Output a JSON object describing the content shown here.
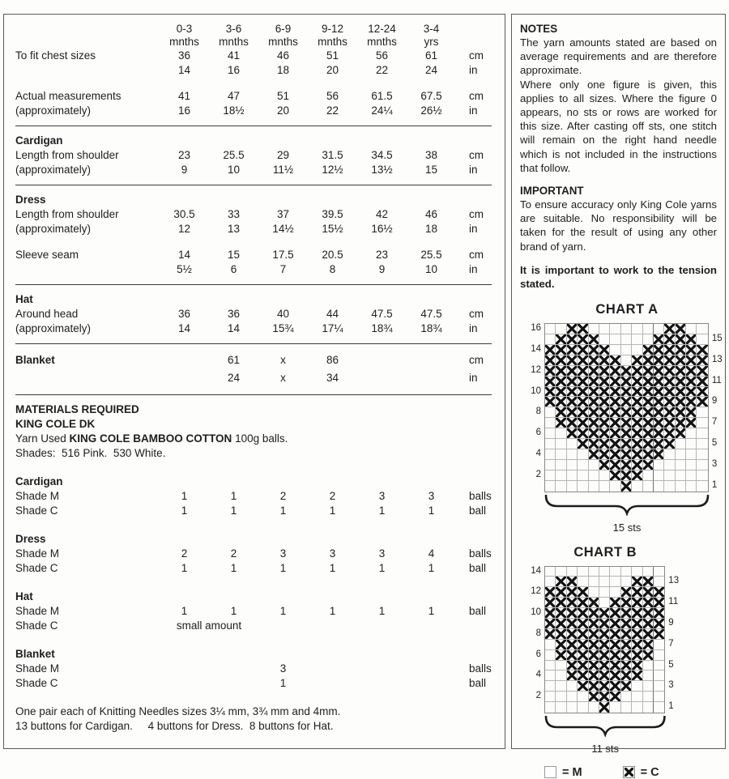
{
  "size_table": {
    "header_cols": [
      [
        "0-3",
        "mnths"
      ],
      [
        "3-6",
        "mnths"
      ],
      [
        "6-9",
        "mnths"
      ],
      [
        "9-12",
        "mnths"
      ],
      [
        "12-24",
        "mnths"
      ],
      [
        "3-4",
        "yrs"
      ]
    ],
    "units": [
      "cm",
      "in"
    ],
    "sections": [
      {
        "title": "",
        "rows": [
          {
            "l1": "To fit chest sizes",
            "l2": "",
            "cm": [
              "36",
              "41",
              "46",
              "51",
              "56",
              "61"
            ],
            "in": [
              "14",
              "16",
              "18",
              "20",
              "22",
              "24"
            ]
          },
          {
            "l1": "Actual measurements",
            "l2": "(approximately)",
            "cm": [
              "41",
              "47",
              "51",
              "56",
              "61.5",
              "67.5"
            ],
            "in": [
              "16",
              "18½",
              "20",
              "22",
              "24¼",
              "26½"
            ],
            "gap_before": true
          }
        ]
      },
      {
        "title": "Cardigan",
        "rows": [
          {
            "l1": "Length from shoulder",
            "l2": "(approximately)",
            "cm": [
              "23",
              "25.5",
              "29",
              "31.5",
              "34.5",
              "38"
            ],
            "in": [
              "9",
              "10",
              "11½",
              "12½",
              "13½",
              "15"
            ]
          }
        ]
      },
      {
        "title": "Dress",
        "rows": [
          {
            "l1": "Length from shoulder",
            "l2": "(approximately)",
            "cm": [
              "30.5",
              "33",
              "37",
              "39.5",
              "42",
              "46"
            ],
            "in": [
              "12",
              "13",
              "14½",
              "15½",
              "16½",
              "18"
            ]
          },
          {
            "l1": "Sleeve seam",
            "l2": "",
            "cm": [
              "14",
              "15",
              "17.5",
              "20.5",
              "23",
              "25.5"
            ],
            "in": [
              "5½",
              "6",
              "7",
              "8",
              "9",
              "10"
            ],
            "gap_before": true
          }
        ]
      },
      {
        "title": "Hat",
        "rows": [
          {
            "l1": "Around head",
            "l2": "(approximately)",
            "cm": [
              "36",
              "36",
              "40",
              "44",
              "47.5",
              "47.5"
            ],
            "in": [
              "14",
              "14",
              "15¾",
              "17¼",
              "18¾",
              "18¾"
            ]
          }
        ]
      },
      {
        "title": "",
        "rows": [
          {
            "l1": "Blanket",
            "l2": "",
            "bold": true,
            "tall": true,
            "cm": [
              "",
              "61",
              "x",
              "86",
              "",
              ""
            ],
            "in": [
              "",
              "24",
              "x",
              "34",
              "",
              ""
            ]
          }
        ]
      }
    ]
  },
  "materials": {
    "heading": "MATERIALS REQUIRED",
    "subheading": "KING COLE DK",
    "yarn_used_prefix": "Yarn Used",
    "yarn_used_bold": "KING COLE BAMBOO COTTON",
    "yarn_used_suffix": "100g balls.",
    "shades": "Shades:  516 Pink.  530 White.",
    "groups": [
      {
        "title": "Cardigan",
        "rows": [
          {
            "label": "Shade M",
            "values": [
              "1",
              "1",
              "2",
              "2",
              "3",
              "3"
            ],
            "unit": "balls"
          },
          {
            "label": "Shade C",
            "values": [
              "1",
              "1",
              "1",
              "1",
              "1",
              "1"
            ],
            "unit": "ball"
          }
        ]
      },
      {
        "title": "Dress",
        "rows": [
          {
            "label": "Shade M",
            "values": [
              "2",
              "2",
              "3",
              "3",
              "3",
              "4"
            ],
            "unit": "balls"
          },
          {
            "label": "Shade C",
            "values": [
              "1",
              "1",
              "1",
              "1",
              "1",
              "1"
            ],
            "unit": "ball"
          }
        ]
      },
      {
        "title": "Hat",
        "rows": [
          {
            "label": "Shade M",
            "values": [
              "1",
              "1",
              "1",
              "1",
              "1",
              "1"
            ],
            "unit": "ball"
          },
          {
            "label": "Shade C",
            "span_text": "small amount",
            "values": [
              "",
              "",
              "",
              "",
              "",
              ""
            ],
            "unit": ""
          }
        ]
      },
      {
        "title": "Blanket",
        "rows": [
          {
            "label": "Shade M",
            "values": [
              "",
              "",
              "3",
              "",
              "",
              ""
            ],
            "unit": "balls"
          },
          {
            "label": "Shade C",
            "values": [
              "",
              "",
              "1",
              "",
              "",
              ""
            ],
            "unit": "ball"
          }
        ]
      }
    ],
    "needles_line": "One pair each of Knitting Needles sizes 3¼ mm, 3¾ mm and 4mm.",
    "buttons_line": "13 buttons for Cardigan.     4 buttons for Dress.  8 buttons for Hat."
  },
  "notes": {
    "heading": "NOTES",
    "para1": "The yarn amounts stated are based on average requirements and are therefore approximate.",
    "para2": "Where only one figure is given, this applies to all sizes. Where the figure 0 appears, no sts or rows are worked for this size. After casting off sts, one stitch will remain on the right hand needle which is not included in the instructions that follow."
  },
  "important": {
    "heading": "IMPORTANT",
    "para": "To ensure accuracy only King Cole yarns are suitable. No responsibility will be taken for the result of using any other brand of yarn.",
    "tension": "It is important to work to the tension stated."
  },
  "charts": [
    {
      "title": "CHART A",
      "sts_label": "15 sts",
      "cols": 15,
      "bold_line_after_col": 10,
      "rows_top_to_bottom": [
        "..XX.......XX..",
        ".XXXX.....XXXX.",
        "XXXXXX...XXXXXX",
        "XXXXXXX.XXXXXXX",
        "XXXXXXXXXXXXXXX",
        "XXXXXXXXXXXXXXX",
        "XXXXXXXXXXXXXXX",
        "XXXXXXXXXXXXXXX",
        ".XXXXXXXXXXXXX.",
        ".XXXXXXXXXXXXX.",
        "..XXXXXXXXXXX..",
        "...XXXXXXXXX...",
        "....XXXXXXX....",
        ".....XXXXX.....",
        "......XXX......",
        ".......X......."
      ]
    },
    {
      "title": "CHART B",
      "sts_label": "11 sts",
      "cols": 11,
      "bold_line_after_col": 10,
      "rows_top_to_bottom": [
        "...........",
        ".XX.....XX.",
        "XXXX...XXXX",
        "XXXXX.XXXXX",
        "XXXXXXXXXXX",
        "XXXXXXXXXXX",
        "XXXXXXXXXXX",
        ".XXXXXXXXX.",
        ".XXXXXXXXX.",
        "..XXXXXXX..",
        "..XXXXXXX..",
        "...XXXXX...",
        "....XXX....",
        ".....X....."
      ]
    }
  ],
  "legend": {
    "m_label": "= M",
    "c_label": "= C"
  }
}
